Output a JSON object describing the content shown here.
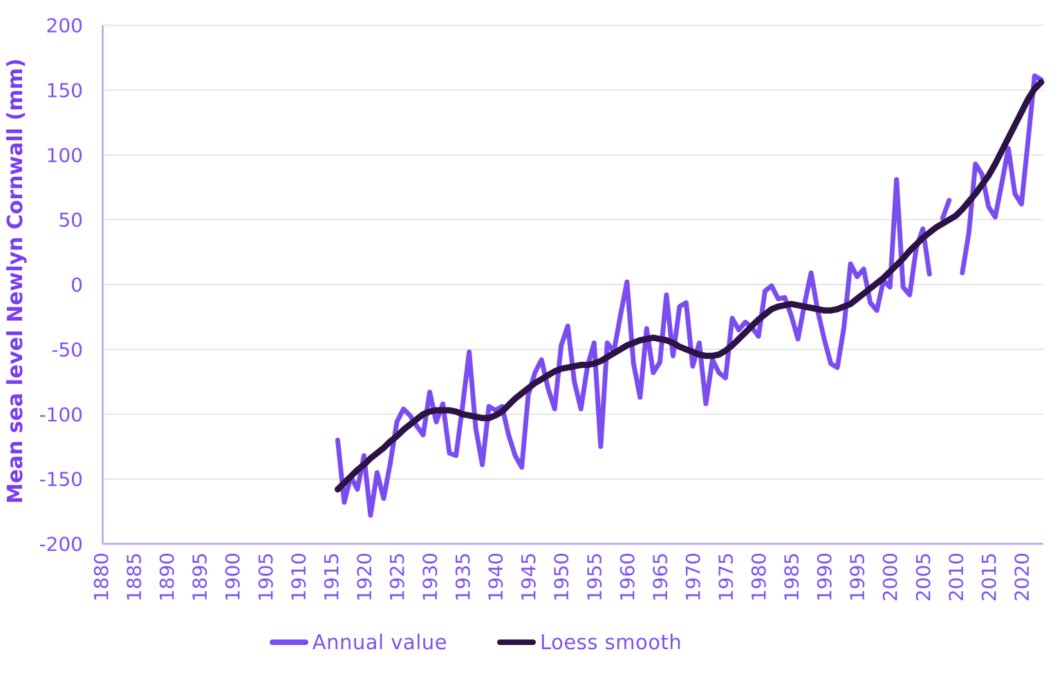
{
  "page": {
    "background": "#ffffff"
  },
  "colors": {
    "annual_line": "#7b4df0",
    "loess_line": "#2d1245",
    "tick_label": "#7d52f0",
    "axis_title": "#7a3df0",
    "legend_text": "#7d52f0",
    "gridline": "#e6e6e6",
    "axis_line": "#b7a0f5"
  },
  "y_axis": {
    "title": "Mean sea level Newlyn Cornwall (mm)",
    "ticks": [
      200,
      150,
      100,
      50,
      0,
      -50,
      -100,
      -150,
      -200
    ],
    "min": -200,
    "max": 200
  },
  "x_axis": {
    "ticks": [
      1880,
      1885,
      1890,
      1895,
      1900,
      1905,
      1910,
      1915,
      1920,
      1925,
      1930,
      1935,
      1940,
      1945,
      1950,
      1955,
      1960,
      1965,
      1970,
      1975,
      1980,
      1985,
      1990,
      1995,
      2000,
      2005,
      2010,
      2015,
      2020
    ],
    "min": 1880,
    "max": 2023
  },
  "legend": {
    "items": [
      {
        "label": "Annual value",
        "color": "#7b4df0"
      },
      {
        "label": "Loess smooth",
        "color": "#2d1245"
      }
    ]
  },
  "chart_data": {
    "type": "line",
    "title": "",
    "xlabel": "",
    "ylabel": "Mean sea level Newlyn Cornwall (mm)",
    "ylim": [
      -200,
      200
    ],
    "xlim": [
      1880,
      2023
    ],
    "grid": "horizontal",
    "legend_position": "bottom",
    "x": [
      1916,
      1917,
      1918,
      1919,
      1920,
      1921,
      1922,
      1923,
      1924,
      1925,
      1926,
      1927,
      1928,
      1929,
      1930,
      1931,
      1932,
      1933,
      1934,
      1935,
      1936,
      1937,
      1938,
      1939,
      1940,
      1941,
      1942,
      1943,
      1944,
      1945,
      1946,
      1947,
      1948,
      1949,
      1950,
      1951,
      1952,
      1953,
      1954,
      1955,
      1956,
      1957,
      1958,
      1959,
      1960,
      1961,
      1962,
      1963,
      1964,
      1965,
      1966,
      1967,
      1968,
      1969,
      1970,
      1971,
      1972,
      1973,
      1974,
      1975,
      1976,
      1977,
      1978,
      1979,
      1980,
      1981,
      1982,
      1983,
      1984,
      1985,
      1986,
      1987,
      1988,
      1989,
      1990,
      1991,
      1992,
      1993,
      1994,
      1995,
      1996,
      1997,
      1998,
      1999,
      2000,
      2001,
      2002,
      2003,
      2004,
      2005,
      2006,
      2007,
      2008,
      2009,
      2010,
      2011,
      2012,
      2013,
      2014,
      2015,
      2016,
      2017,
      2018,
      2019,
      2020,
      2021,
      2022,
      2023
    ],
    "series": [
      {
        "name": "Annual value",
        "color": "#7b4df0",
        "stroke_width": 7,
        "values": [
          -120,
          -168,
          -148,
          -158,
          -132,
          -178,
          -145,
          -165,
          -138,
          -106,
          -96,
          -101,
          -109,
          -116,
          -83,
          -106,
          -92,
          -130,
          -132,
          -94,
          -52,
          -111,
          -139,
          -94,
          -97,
          -94,
          -116,
          -132,
          -141,
          -85,
          -68,
          -58,
          -80,
          -96,
          -47,
          -32,
          -75,
          -96,
          -63,
          -45,
          -125,
          -45,
          -52,
          -24,
          2,
          -61,
          -87,
          -34,
          -68,
          -60,
          -8,
          -55,
          -17,
          -14,
          -63,
          -45,
          -92,
          -58,
          -68,
          -72,
          -26,
          -35,
          -29,
          -33,
          -40,
          -5,
          -1,
          -11,
          -10,
          -24,
          -42,
          -15,
          9,
          -20,
          -42,
          -61,
          -64,
          -33,
          16,
          6,
          12,
          -14,
          -20,
          3,
          -2,
          81,
          -2,
          -8,
          28,
          43,
          8,
          null,
          51,
          65,
          null,
          9,
          40,
          93,
          85,
          60,
          52,
          78,
          105,
          70,
          62,
          111,
          161,
          158
        ]
      },
      {
        "name": "Loess smooth",
        "color": "#2d1245",
        "stroke_width": 9,
        "values": [
          -158,
          -153,
          -148,
          -143,
          -139,
          -134,
          -130,
          -126,
          -121,
          -117,
          -112,
          -108,
          -104,
          -100,
          -98,
          -97,
          -97,
          -97,
          -98,
          -100,
          -101,
          -102,
          -103,
          -103,
          -101,
          -98,
          -93,
          -88,
          -84,
          -80,
          -76,
          -73,
          -70,
          -67,
          -65,
          -64,
          -63,
          -62,
          -62,
          -61,
          -59,
          -56,
          -53,
          -50,
          -47,
          -45,
          -43,
          -42,
          -41,
          -42,
          -43,
          -45,
          -48,
          -50,
          -52,
          -54,
          -55,
          -55,
          -54,
          -51,
          -47,
          -42,
          -37,
          -32,
          -27,
          -23,
          -19,
          -17,
          -16,
          -15,
          -16,
          -17,
          -18,
          -19,
          -20,
          -20,
          -19,
          -17,
          -15,
          -11,
          -7,
          -3,
          1,
          5,
          10,
          15,
          20,
          26,
          31,
          36,
          40,
          44,
          47,
          50,
          53,
          58,
          64,
          70,
          77,
          84,
          93,
          103,
          113,
          123,
          133,
          143,
          151,
          156
        ]
      }
    ]
  }
}
